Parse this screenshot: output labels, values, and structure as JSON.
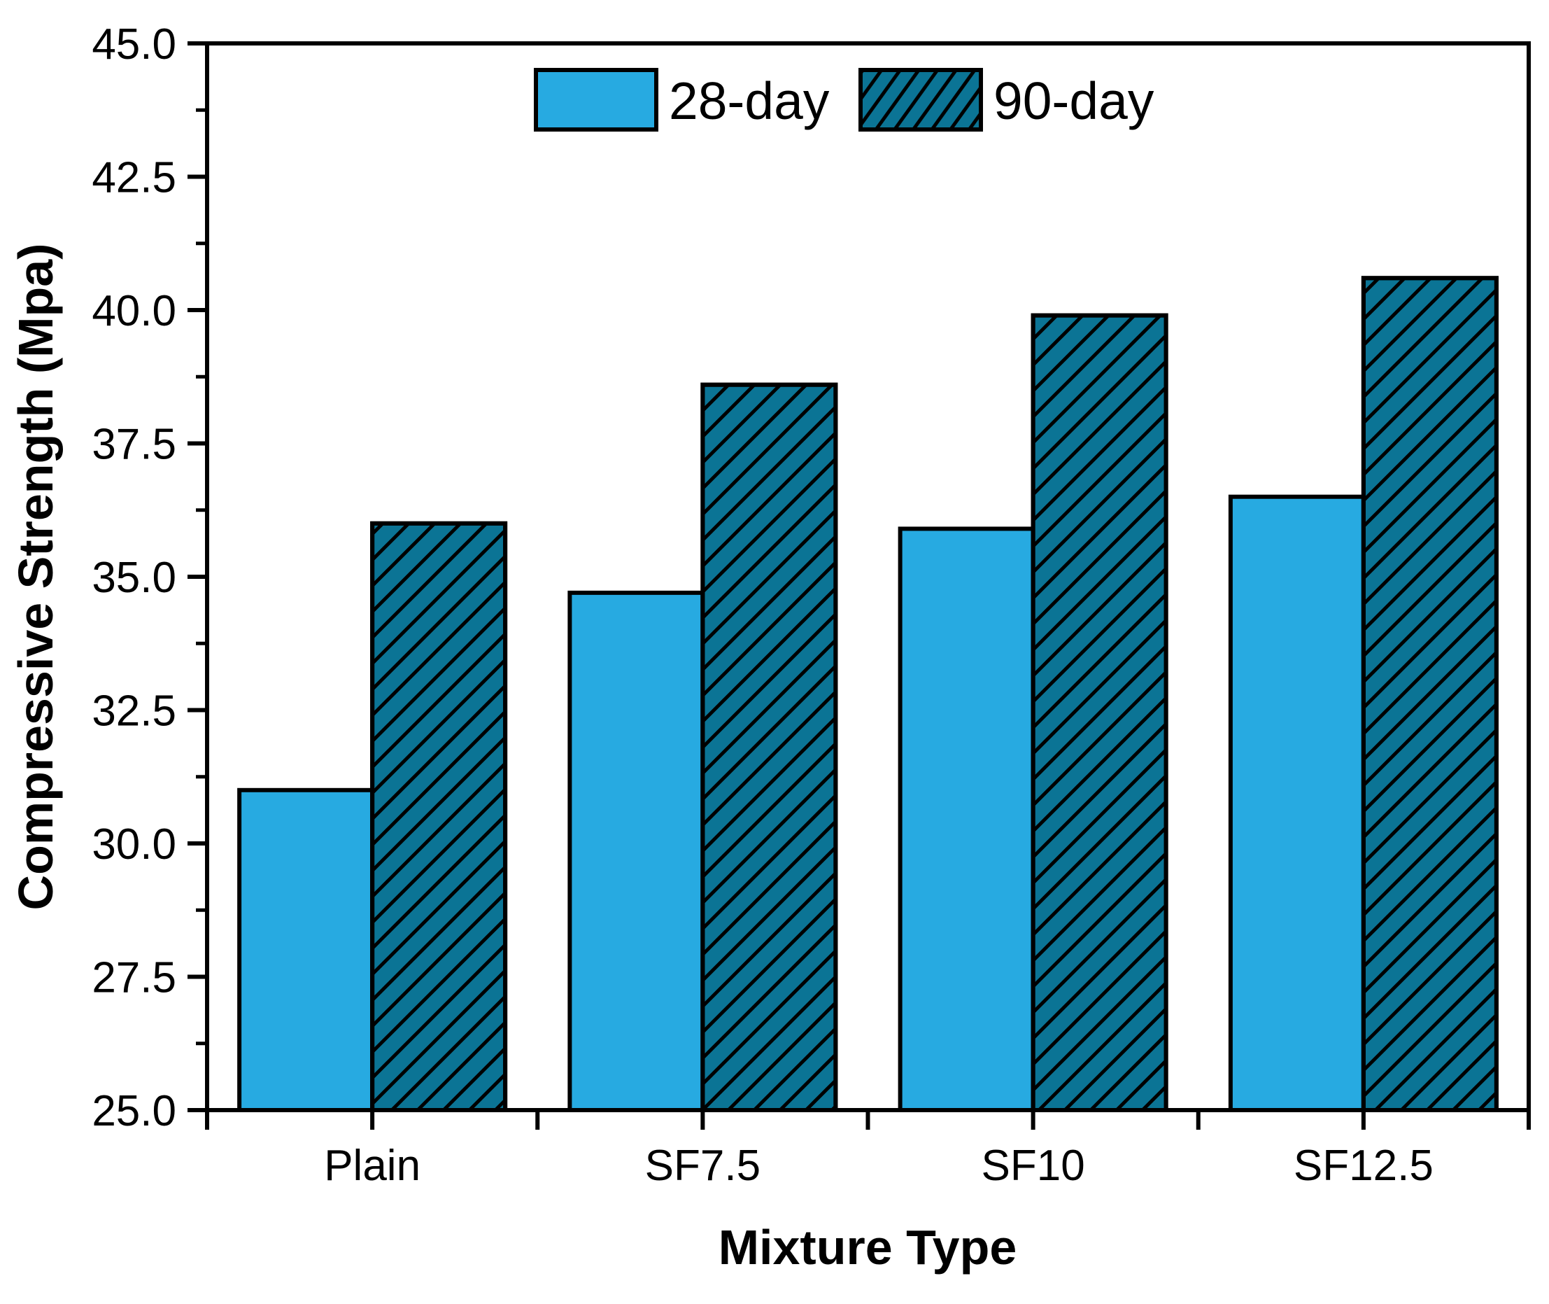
{
  "chart_data": {
    "type": "bar",
    "title": "",
    "categories": [
      "Plain",
      "SF7.5",
      "SF10",
      "SF12.5"
    ],
    "series": [
      {
        "name": "28-day",
        "values": [
          31.0,
          34.7,
          35.9,
          36.5
        ],
        "fill": "#27AAE1",
        "hatch": false
      },
      {
        "name": "90-day",
        "values": [
          36.0,
          38.6,
          39.9,
          40.6
        ],
        "fill": "#0B7495",
        "hatch": true
      }
    ],
    "xlabel": "Mixture Type",
    "ylabel": "Compressive Strength (Mpa)",
    "ylim": [
      25.0,
      45.0
    ],
    "ytick_step": 2.5,
    "yminor_step": 1.25,
    "ytick_labels": [
      "25.0",
      "27.5",
      "30.0",
      "32.5",
      "35.0",
      "37.5",
      "40.0",
      "42.5",
      "45.0"
    ],
    "grid": false,
    "legend_position": "top-center",
    "frame_color": "#000000",
    "hatch_line_color": "#000000",
    "text_color": "#000000"
  }
}
